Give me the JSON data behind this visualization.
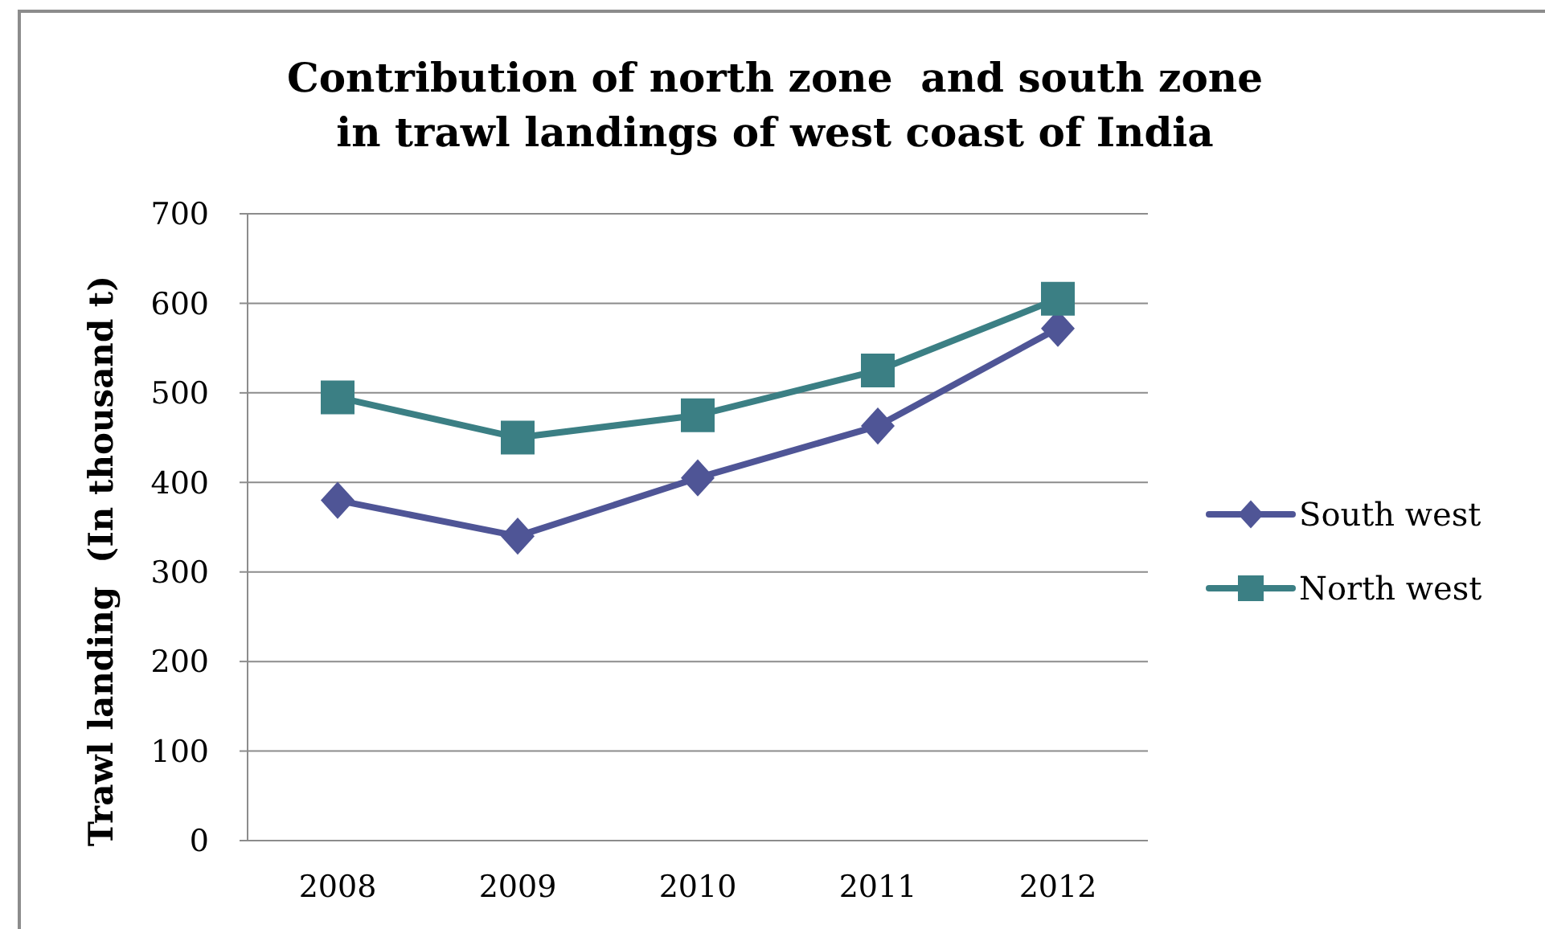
{
  "chart_data": {
    "type": "line",
    "title": "Contribution of north zone  and south zone\nin trawl landings of west coast of India",
    "ylabel": "Trawl landing  (In thousand t)",
    "categories": [
      "2008",
      "2009",
      "2010",
      "2011",
      "2012"
    ],
    "series": [
      {
        "name": "South west",
        "color": "#4f5596",
        "marker": "diamond",
        "values": [
          380,
          340,
          405,
          463,
          572
        ]
      },
      {
        "name": "North west",
        "color": "#3b7f84",
        "marker": "square",
        "values": [
          495,
          450,
          475,
          525,
          605
        ]
      }
    ],
    "ylim": [
      0,
      700
    ],
    "yticks": [
      0,
      100,
      200,
      300,
      400,
      500,
      600,
      700
    ],
    "grid": "y",
    "legend": "right",
    "line_style": "solid"
  }
}
